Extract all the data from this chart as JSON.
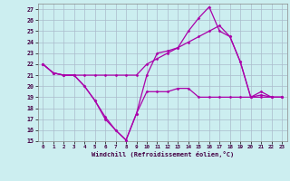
{
  "xlabel": "Windchill (Refroidissement éolien,°C)",
  "bg_color": "#cceef0",
  "grid_color": "#aabbcc",
  "line_color": "#aa00aa",
  "xlim": [
    -0.5,
    23.5
  ],
  "ylim": [
    15,
    27.5
  ],
  "xticks": [
    0,
    1,
    2,
    3,
    4,
    5,
    6,
    7,
    8,
    9,
    10,
    11,
    12,
    13,
    14,
    15,
    16,
    17,
    18,
    19,
    20,
    21,
    22,
    23
  ],
  "yticks": [
    15,
    16,
    17,
    18,
    19,
    20,
    21,
    22,
    23,
    24,
    25,
    26,
    27
  ],
  "series": [
    [
      22,
      21.2,
      21,
      21,
      20,
      18.7,
      17.0,
      16.0,
      15.1,
      17.5,
      19.5,
      19.5,
      19.5,
      19.8,
      19.8,
      19.0,
      19.0,
      19.0,
      19.0,
      19.0,
      19.0,
      19.2,
      19.0,
      19.0
    ],
    [
      22,
      21.2,
      21,
      21,
      20,
      18.7,
      17.2,
      16.0,
      15.1,
      17.5,
      21.0,
      23.0,
      23.2,
      23.5,
      25.0,
      26.2,
      27.2,
      25.0,
      24.5,
      22.2,
      19.0,
      19.0,
      19.0,
      19.0
    ],
    [
      22,
      21.2,
      21,
      21,
      21.0,
      21.0,
      21.0,
      21.0,
      21.0,
      21.0,
      22.0,
      22.5,
      23.0,
      23.5,
      24.0,
      24.5,
      25.0,
      25.5,
      24.5,
      22.2,
      19.0,
      19.5,
      19.0,
      19.0
    ]
  ]
}
